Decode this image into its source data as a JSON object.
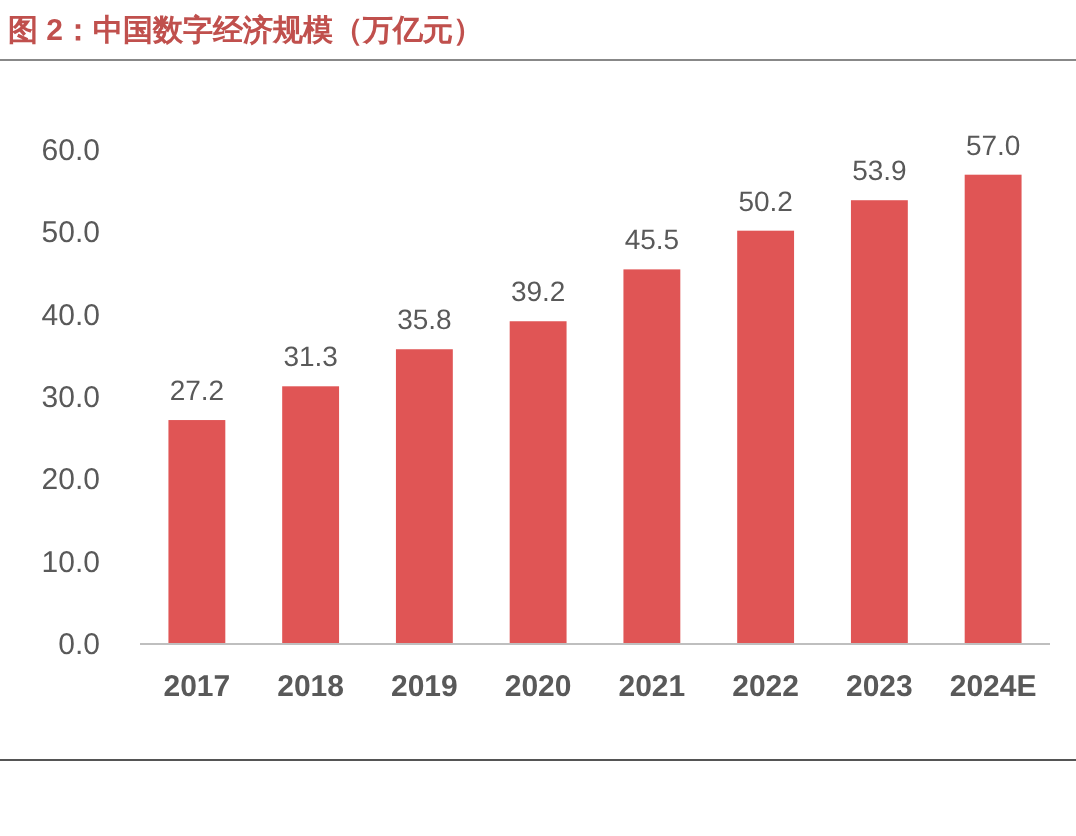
{
  "chart_data": {
    "type": "bar",
    "title": "图 2：中国数字经济规模（万亿元）",
    "categories": [
      "2017",
      "2018",
      "2019",
      "2020",
      "2021",
      "2022",
      "2023",
      "2024E"
    ],
    "values": [
      27.2,
      31.3,
      35.8,
      39.2,
      45.5,
      50.2,
      53.9,
      57.0
    ],
    "value_labels": [
      "27.2",
      "31.3",
      "35.8",
      "39.2",
      "45.5",
      "50.2",
      "53.9",
      "57.0"
    ],
    "color": "#e05555",
    "ylim": [
      0,
      60
    ],
    "yticks": [
      {
        "value": 0,
        "label": "0.0"
      },
      {
        "value": 10,
        "label": "10.0"
      },
      {
        "value": 20,
        "label": "20.0"
      },
      {
        "value": 30,
        "label": "30.0"
      },
      {
        "value": 40,
        "label": "40.0"
      },
      {
        "value": 50,
        "label": "50.0"
      },
      {
        "value": 60,
        "label": "60.0"
      }
    ],
    "grid": false
  }
}
